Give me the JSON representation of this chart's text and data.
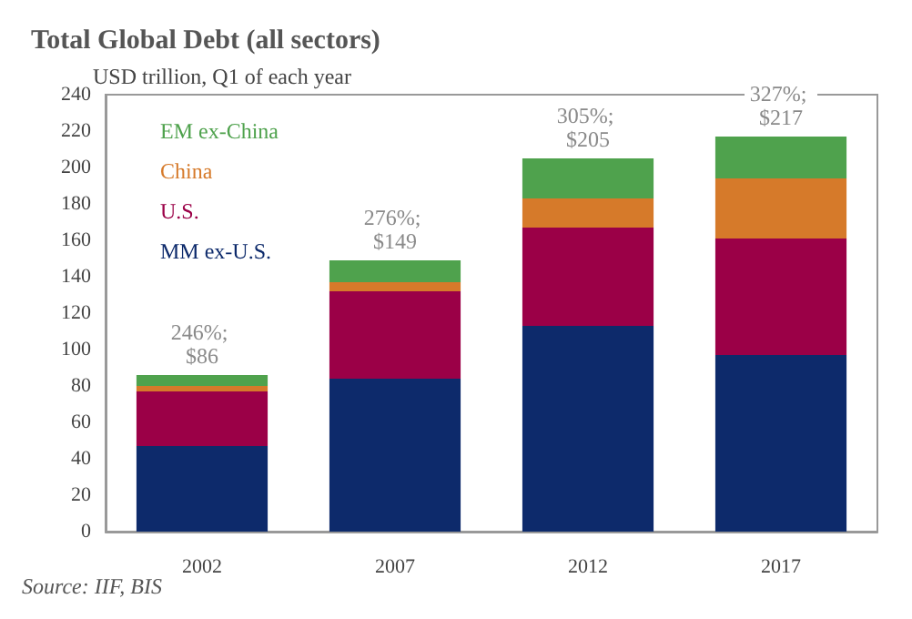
{
  "chart_data": {
    "type": "bar",
    "title": "Total Global Debt (all sectors)",
    "subtitle": "USD trillion, Q1 of each year",
    "categories": [
      "2002",
      "2007",
      "2012",
      "2017"
    ],
    "stacked": true,
    "series": [
      {
        "name": "MM ex-U.S.",
        "color": "#0d2a6b",
        "values": [
          47,
          84,
          113,
          97
        ]
      },
      {
        "name": "U.S.",
        "color": "#9b0047",
        "values": [
          30,
          48,
          54,
          64
        ]
      },
      {
        "name": "China",
        "color": "#d67a2a",
        "values": [
          3,
          5,
          16,
          33
        ]
      },
      {
        "name": "EM ex-China",
        "color": "#4fa24d",
        "values": [
          6,
          12,
          22,
          23
        ]
      }
    ],
    "totals": [
      "246%; $86",
      "276%; $149",
      "305%; $205",
      "327%; $217"
    ],
    "ylim": [
      0,
      240
    ],
    "yticks": [
      0,
      20,
      40,
      60,
      80,
      100,
      120,
      140,
      160,
      180,
      200,
      220,
      240
    ],
    "grid": false,
    "legend": "top left",
    "annotations": [
      "Source: IIF, BIS"
    ]
  }
}
